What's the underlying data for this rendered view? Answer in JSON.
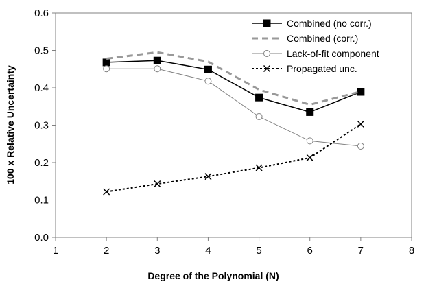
{
  "chart_data": {
    "type": "line",
    "title": "",
    "xlabel": "Degree of the Polynomial (N)",
    "ylabel": "100 x Relative Uncertainty",
    "xlim": [
      1,
      8
    ],
    "ylim": [
      0.0,
      0.6
    ],
    "xticks": [
      1,
      2,
      3,
      4,
      5,
      6,
      7,
      8
    ],
    "yticks": [
      0.0,
      0.1,
      0.2,
      0.3,
      0.4,
      0.5,
      0.6
    ],
    "x_tick_labels": [
      "1",
      "2",
      "3",
      "4",
      "5",
      "6",
      "7",
      "8"
    ],
    "y_tick_labels": [
      "0.0",
      "0.1",
      "0.2",
      "0.3",
      "0.4",
      "0.5",
      "0.6"
    ],
    "grid": false,
    "legend_position": "top-right",
    "series": [
      {
        "name": "Combined (no corr.)",
        "x": [
          2,
          3,
          4,
          5,
          6,
          7
        ],
        "values": [
          0.468,
          0.473,
          0.449,
          0.374,
          0.335,
          0.389
        ],
        "color": "#000000",
        "line_style": "solid",
        "marker": "filled-square"
      },
      {
        "name": "Combined (corr.)",
        "x": [
          2,
          3,
          4,
          5,
          6,
          7
        ],
        "values": [
          0.478,
          0.495,
          0.47,
          0.395,
          0.355,
          0.39
        ],
        "color": "#999999",
        "line_style": "dashed",
        "marker": "none"
      },
      {
        "name": "Lack-of-fit component",
        "x": [
          2,
          3,
          4,
          5,
          6,
          7
        ],
        "values": [
          0.451,
          0.451,
          0.418,
          0.323,
          0.258,
          0.244
        ],
        "color": "#808080",
        "line_style": "solid",
        "marker": "open-circle"
      },
      {
        "name": "Propagated unc.",
        "x": [
          2,
          3,
          4,
          5,
          6,
          7
        ],
        "values": [
          0.122,
          0.143,
          0.163,
          0.186,
          0.213,
          0.303
        ],
        "color": "#000000",
        "line_style": "dotted",
        "marker": "x"
      }
    ]
  }
}
